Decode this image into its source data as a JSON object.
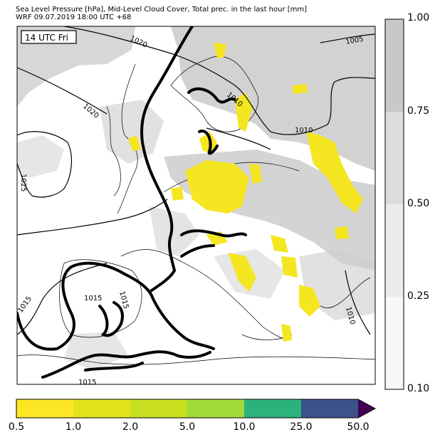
{
  "header": {
    "line1": "Sea Level Pressure [hPa], Mid-Level Cloud Cover, Total prec. in the last hour [mm]",
    "line2": "WRF 09.07.2019 18:00 UTC +68"
  },
  "map": {
    "valid_time_label": "14 UTC Fri",
    "isobar_labels": [
      "1020",
      "1005",
      "1010",
      "1010",
      "1020",
      "1025",
      "1015",
      "1015",
      "1015",
      "1015",
      "1010"
    ]
  },
  "cloud_colorbar": {
    "ticks": [
      "1.00",
      "0.75",
      "0.50",
      "0.25",
      "0.10"
    ],
    "colors": [
      "#c8c8c8",
      "#dcdcdc",
      "#ebebeb",
      "#f7f7f7"
    ]
  },
  "precip_colorbar": {
    "ticks": [
      "0.5",
      "1.0",
      "2.0",
      "5.0",
      "10.0",
      "25.0",
      "50.0"
    ],
    "colors": [
      "#fde725",
      "#e4e41c",
      "#c8e020",
      "#a0da39",
      "#2db27d",
      "#3b528b",
      "#440154"
    ]
  },
  "colors": {
    "land": "#ffffff",
    "cloud": "#cdcdcd",
    "precip": "#f5e622",
    "front": "#000000"
  }
}
